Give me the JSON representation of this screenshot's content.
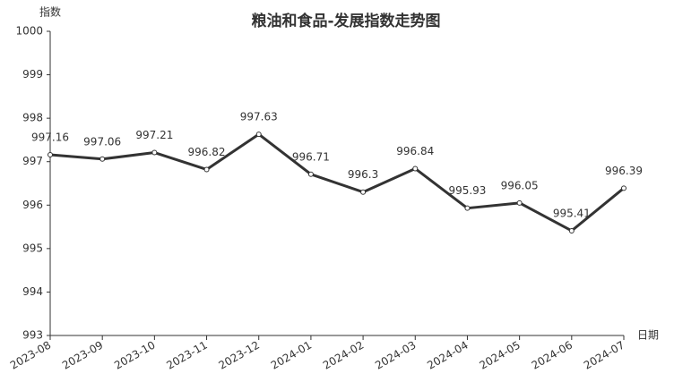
{
  "chart_data": {
    "type": "line",
    "title": "粮油和食品-发展指数走势图",
    "y_label": "指数",
    "x_label": "日期",
    "categories": [
      "2023-08",
      "2023-09",
      "2023-10",
      "2023-11",
      "2023-12",
      "2024-01",
      "2024-02",
      "2024-03",
      "2024-04",
      "2024-05",
      "2024-06",
      "2024-07"
    ],
    "series": [
      {
        "name": "发展指数",
        "color": "#333333",
        "values": [
          997.16,
          997.06,
          997.21,
          996.82,
          997.63,
          996.71,
          996.3,
          996.84,
          995.93,
          996.05,
          995.41,
          996.39
        ]
      }
    ],
    "ylim": [
      993,
      1000
    ],
    "yticks": [
      993,
      994,
      995,
      996,
      997,
      998,
      999,
      1000
    ],
    "grid": false
  }
}
